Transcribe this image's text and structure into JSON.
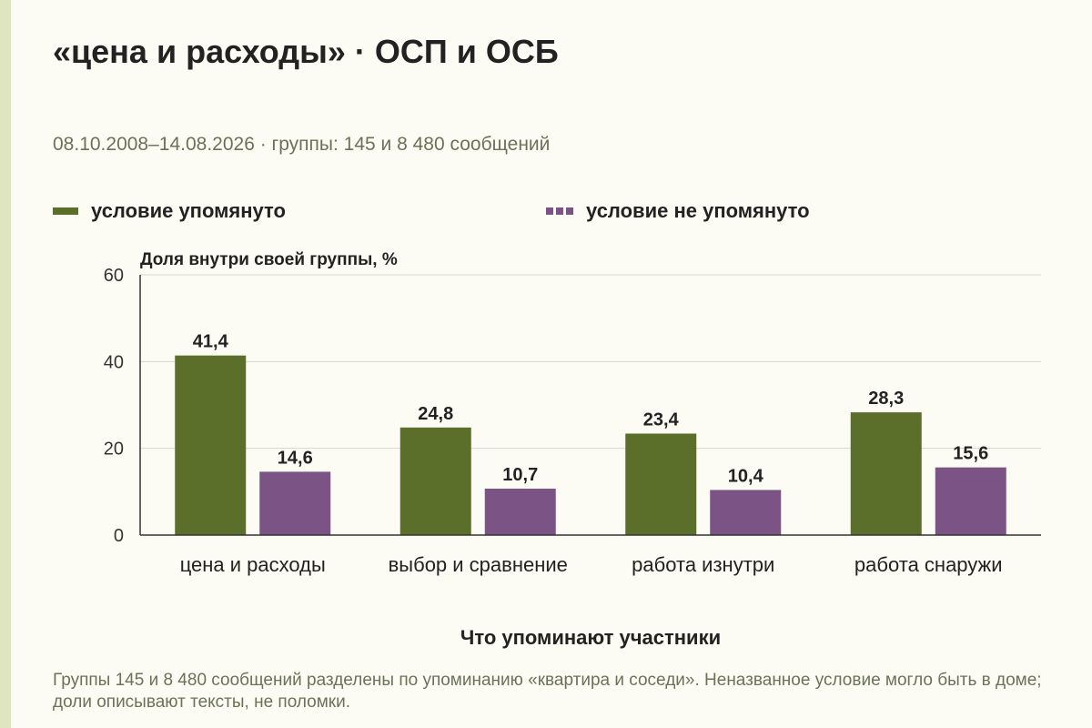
{
  "title": "«цена и расходы» · ОСП и ОСБ",
  "subtitle": "08.10.2008–14.08.2026 · группы: 145 и 8 480 сообщений",
  "footnote": "Группы 145 и 8 480 сообщений разделены по упоминанию «квартира и соседи». Неназванное условие могло быть в доме; доли описывают тексты, не поломки.",
  "colors": {
    "mentioned": "#5b6e2a",
    "not_mentioned": "#7b5485",
    "accent_stripe": "#dfe6bf"
  },
  "chart_data": {
    "type": "bar",
    "ylabel": "Доля внутри своей группы, %",
    "xlabel": "Что упоминают участники",
    "ylim": [
      0,
      60
    ],
    "yticks": [
      0,
      20,
      40,
      60
    ],
    "grid": true,
    "legend_position": "top",
    "categories": [
      "цена и расходы",
      "выбор и сравнение",
      "работа изнутри",
      "работа снаружи"
    ],
    "series": [
      {
        "name": "условие упомянуто",
        "values": [
          41.4,
          24.8,
          23.4,
          28.3
        ],
        "labels": [
          "41,4",
          "24,8",
          "23,4",
          "28,3"
        ],
        "color": "#5b6e2a"
      },
      {
        "name": "условие не упомянуто",
        "values": [
          14.6,
          10.7,
          10.4,
          15.6
        ],
        "labels": [
          "14,6",
          "10,7",
          "10,4",
          "15,6"
        ],
        "color": "#7b5485"
      }
    ]
  }
}
